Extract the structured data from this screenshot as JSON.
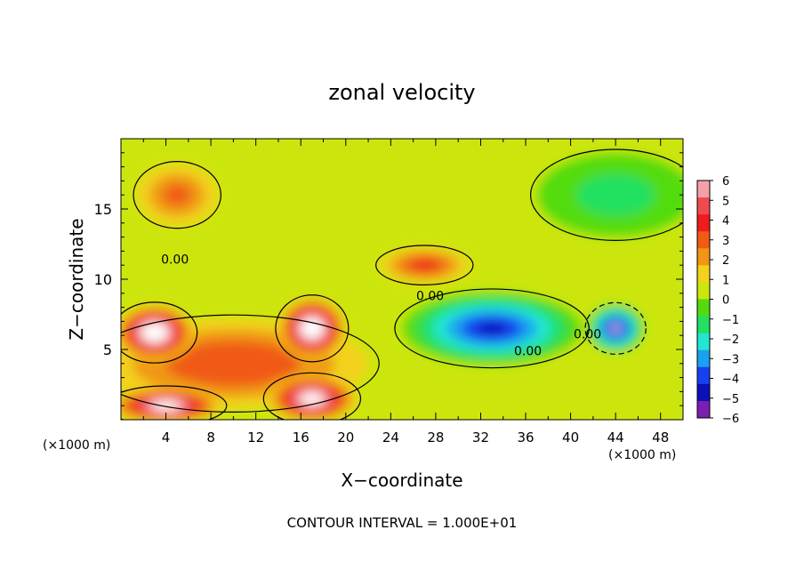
{
  "chart_data": {
    "type": "heatmap",
    "title": "zonal velocity",
    "xlabel": "X−coordinate",
    "ylabel": "Z−coordinate",
    "x_scale_note_left": "(×1000 m)",
    "x_scale_note_right": "(×1000 m)",
    "footer": "CONTOUR INTERVAL = 1.000E+01",
    "xlim": [
      0,
      50
    ],
    "ylim": [
      0,
      20
    ],
    "x_ticks": [
      4,
      8,
      12,
      16,
      20,
      24,
      28,
      32,
      36,
      40,
      44,
      48
    ],
    "y_ticks": [
      5,
      10,
      15
    ],
    "contour_labels": [
      {
        "text": "0.00",
        "x": 4.8,
        "y": 11.1
      },
      {
        "text": "0.00",
        "x": 27.5,
        "y": 8.5
      },
      {
        "text": "0.00",
        "x": 36.2,
        "y": 4.6
      },
      {
        "text": "0.00",
        "x": 41.5,
        "y": 5.8
      }
    ],
    "colorbar": {
      "ticks": [
        "6",
        "5",
        "4",
        "3",
        "2",
        "1",
        "0",
        "−1",
        "−2",
        "−3",
        "−4",
        "−5",
        "−6"
      ],
      "colors": [
        "#f4a0a8",
        "#f04a50",
        "#ee1c1c",
        "#f05a14",
        "#f09614",
        "#f2d21a",
        "#cce60e",
        "#52dc10",
        "#22e060",
        "#22e6d0",
        "#1aa0f0",
        "#1640f0",
        "#0c10b8",
        "#7a20b0"
      ]
    },
    "features": [
      {
        "kind": "background",
        "value": 0.3
      },
      {
        "kind": "blob",
        "x": 10,
        "y": 4,
        "rx": 12,
        "ry": 3.2,
        "value": 3.5
      },
      {
        "kind": "blob",
        "x": 5,
        "y": 16,
        "rx": 3.6,
        "ry": 2.2,
        "value": 3
      },
      {
        "kind": "blob",
        "x": 27,
        "y": 11,
        "rx": 4,
        "ry": 1.3,
        "value": 4
      },
      {
        "kind": "blob",
        "x": 44,
        "y": 16,
        "rx": 7,
        "ry": 3,
        "value": -2
      },
      {
        "kind": "blob",
        "x": 33,
        "y": 6.5,
        "rx": 8,
        "ry": 2.6,
        "value": -6
      },
      {
        "kind": "blob",
        "x": 3,
        "y": 6.2,
        "rx": 3.5,
        "ry": 2,
        "value": 9
      },
      {
        "kind": "blob",
        "x": 17,
        "y": 6.5,
        "rx": 3,
        "ry": 2.2,
        "value": 9
      },
      {
        "kind": "blob",
        "x": 44,
        "y": 6.5,
        "rx": 2.5,
        "ry": 1.7,
        "value": -7
      },
      {
        "kind": "blob",
        "x": 17,
        "y": 1.5,
        "rx": 4,
        "ry": 1.7,
        "value": 8
      },
      {
        "kind": "blob",
        "x": 4,
        "y": 1,
        "rx": 5,
        "ry": 1.3,
        "value": 8
      }
    ]
  }
}
